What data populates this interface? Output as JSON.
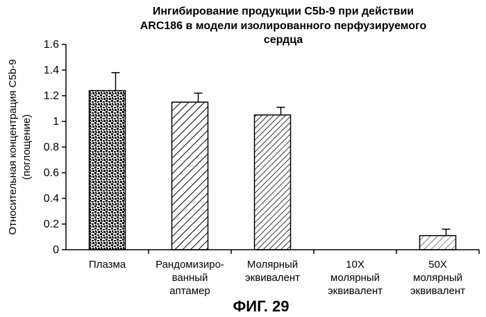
{
  "chart_data": {
    "type": "bar",
    "title_lines": [
      "Ингибирование продукции C5b-9 при действии",
      "ARC186 в модели изолированного перфузируемого",
      "сердца"
    ],
    "ylabel_lines": [
      "Относительная концентрация C5b-9",
      "(поглощение)"
    ],
    "xlabel": "",
    "ylim": [
      0,
      1.6
    ],
    "yticks": [
      "0",
      "0.2",
      "0.4",
      "0.6",
      "0.8",
      "1",
      "1.2",
      "1.4",
      "1.6"
    ],
    "grid": false,
    "categories": [
      [
        "Плазма"
      ],
      [
        "Рандомизиро-",
        "ванный",
        "аптамер"
      ],
      [
        "Молярный",
        "эквивалент"
      ],
      [
        "10X",
        "молярный",
        "эквивалент"
      ],
      [
        "50X",
        "молярный",
        "эквивалент"
      ]
    ],
    "values": [
      1.24,
      1.15,
      1.05,
      0,
      0.11
    ],
    "errors": [
      0.14,
      0.07,
      0.06,
      0,
      0.05
    ],
    "fills": [
      "stipple",
      "hatch-wide",
      "hatch-dense",
      "none",
      "hatch-sparse"
    ]
  },
  "figure_label": "ФИГ. 29"
}
